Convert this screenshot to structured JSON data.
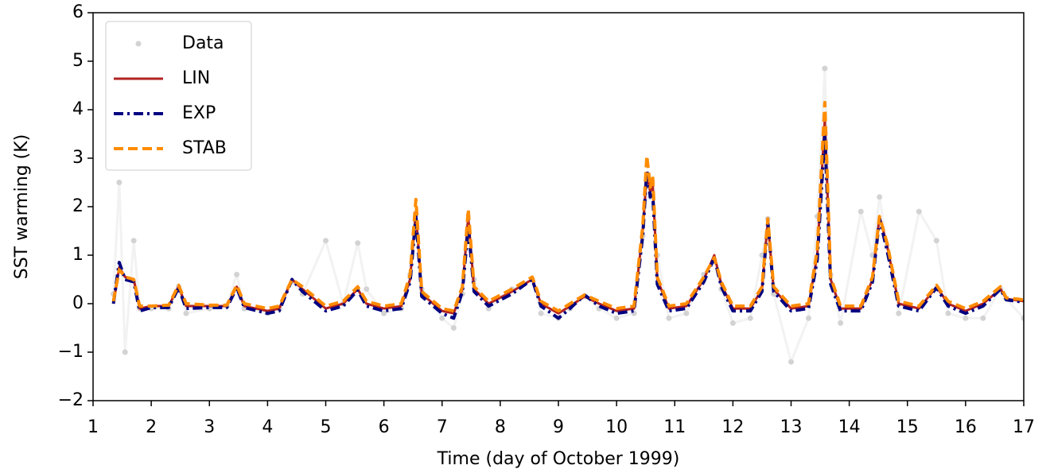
{
  "chart_data": {
    "type": "line",
    "xlabel": "Time (day of October 1999)",
    "ylabel": "SST warming (K)",
    "xlim": [
      1,
      17
    ],
    "ylim": [
      -2,
      6
    ],
    "xticks": [
      1,
      2,
      3,
      4,
      5,
      6,
      7,
      8,
      9,
      10,
      11,
      12,
      13,
      14,
      15,
      16,
      17
    ],
    "yticks": [
      {
        "value": -2,
        "label": "−2"
      },
      {
        "value": -1,
        "label": "−1"
      },
      0,
      1,
      2,
      3,
      4,
      5,
      6
    ],
    "legend": "upper left",
    "x": [
      1.35,
      1.45,
      1.55,
      1.7,
      1.8,
      2.0,
      2.3,
      2.47,
      2.6,
      3.0,
      3.3,
      3.47,
      3.6,
      4.0,
      4.2,
      4.42,
      4.6,
      5.0,
      5.3,
      5.55,
      5.7,
      6.0,
      6.3,
      6.45,
      6.55,
      6.65,
      7.0,
      7.2,
      7.35,
      7.45,
      7.55,
      7.8,
      8.2,
      8.55,
      8.7,
      9.0,
      9.2,
      9.45,
      9.7,
      10.0,
      10.3,
      10.45,
      10.52,
      10.58,
      10.62,
      10.7,
      10.9,
      11.2,
      11.5,
      11.68,
      11.8,
      12.0,
      12.3,
      12.5,
      12.6,
      12.7,
      13.0,
      13.3,
      13.45,
      13.58,
      13.68,
      13.85,
      14.2,
      14.4,
      14.52,
      14.65,
      14.85,
      15.2,
      15.5,
      15.7,
      16.0,
      16.3,
      16.6,
      16.7,
      17.0
    ],
    "series": [
      {
        "name": "Data",
        "color": "#d3d3d3",
        "marker": "o",
        "linestyle": "solid",
        "line_opacity": 0.3,
        "values": [
          0.2,
          2.5,
          -1.0,
          1.3,
          -0.1,
          -0.1,
          -0.1,
          0.35,
          -0.2,
          -0.1,
          -0.05,
          0.6,
          -0.1,
          -0.2,
          -0.1,
          0.45,
          0.2,
          1.3,
          0.0,
          1.25,
          0.3,
          -0.2,
          -0.1,
          0.6,
          1.7,
          0.3,
          -0.3,
          -0.5,
          0.2,
          1.6,
          0.5,
          -0.1,
          0.3,
          0.5,
          -0.2,
          -0.3,
          -0.1,
          0.15,
          -0.1,
          -0.3,
          -0.2,
          1.4,
          2.5,
          2.2,
          2.2,
          1.0,
          -0.3,
          -0.2,
          0.6,
          0.9,
          0.3,
          -0.4,
          -0.3,
          1.0,
          1.75,
          0.2,
          -1.2,
          -0.3,
          1.8,
          4.85,
          0.6,
          -0.4,
          1.9,
          1.0,
          2.2,
          1.2,
          -0.2,
          1.9,
          1.3,
          -0.2,
          -0.3,
          -0.3,
          0.3,
          0.1,
          -0.3
        ]
      },
      {
        "name": "LIN",
        "color": "#b22222",
        "linestyle": "solid",
        "values": [
          0.0,
          0.75,
          0.55,
          0.5,
          -0.1,
          -0.05,
          -0.05,
          0.35,
          -0.05,
          -0.05,
          -0.05,
          0.35,
          -0.05,
          -0.15,
          -0.1,
          0.5,
          0.3,
          -0.1,
          0.0,
          0.3,
          0.0,
          -0.1,
          -0.05,
          0.5,
          1.9,
          0.2,
          -0.15,
          -0.2,
          0.3,
          1.8,
          0.3,
          0.0,
          0.25,
          0.5,
          0.0,
          -0.2,
          -0.05,
          0.15,
          0.0,
          -0.15,
          -0.1,
          1.5,
          2.7,
          2.3,
          2.5,
          0.5,
          -0.1,
          -0.05,
          0.5,
          1.0,
          0.4,
          -0.1,
          -0.1,
          0.3,
          1.7,
          0.3,
          -0.1,
          -0.05,
          1.0,
          3.8,
          0.5,
          -0.1,
          -0.1,
          0.5,
          1.8,
          1.2,
          0.0,
          -0.1,
          0.35,
          0.0,
          -0.15,
          0.0,
          0.3,
          0.1,
          0.05
        ]
      },
      {
        "name": "EXP",
        "color": "#000080",
        "linestyle": "dashdot",
        "values": [
          0.0,
          0.85,
          0.5,
          0.45,
          -0.15,
          -0.08,
          -0.08,
          0.33,
          -0.1,
          -0.08,
          -0.08,
          0.33,
          -0.08,
          -0.2,
          -0.15,
          0.5,
          0.25,
          -0.15,
          -0.05,
          0.28,
          -0.05,
          -0.15,
          -0.1,
          0.45,
          1.8,
          0.15,
          -0.2,
          -0.3,
          0.25,
          1.6,
          0.25,
          -0.05,
          0.2,
          0.5,
          -0.05,
          -0.3,
          -0.1,
          0.18,
          -0.05,
          -0.2,
          -0.15,
          1.4,
          2.75,
          2.2,
          2.3,
          0.4,
          -0.15,
          -0.1,
          0.45,
          0.95,
          0.35,
          -0.15,
          -0.15,
          0.25,
          1.7,
          0.25,
          -0.15,
          -0.1,
          0.9,
          3.5,
          0.4,
          -0.15,
          -0.15,
          0.45,
          1.75,
          1.1,
          -0.05,
          -0.15,
          0.33,
          -0.05,
          -0.2,
          -0.05,
          0.3,
          0.08,
          0.03
        ]
      },
      {
        "name": "STAB",
        "color": "#ff8c00",
        "linestyle": "dashed",
        "values": [
          0.05,
          0.7,
          0.55,
          0.5,
          -0.05,
          -0.05,
          -0.03,
          0.38,
          0.0,
          -0.03,
          -0.03,
          0.38,
          0.0,
          -0.1,
          -0.05,
          0.5,
          0.35,
          -0.05,
          0.05,
          0.35,
          0.05,
          -0.05,
          0.0,
          0.6,
          2.15,
          0.25,
          -0.1,
          -0.15,
          0.35,
          1.95,
          0.35,
          0.05,
          0.3,
          0.55,
          0.05,
          -0.15,
          0.0,
          0.18,
          0.05,
          -0.1,
          -0.05,
          1.6,
          3.05,
          2.4,
          2.65,
          0.55,
          -0.05,
          0.0,
          0.55,
          0.95,
          0.45,
          -0.05,
          -0.05,
          0.35,
          1.75,
          0.35,
          -0.05,
          0.0,
          1.1,
          4.15,
          0.55,
          -0.05,
          -0.05,
          0.55,
          1.8,
          1.25,
          0.05,
          -0.05,
          0.38,
          0.05,
          -0.1,
          0.05,
          0.35,
          0.12,
          0.08
        ]
      }
    ]
  }
}
